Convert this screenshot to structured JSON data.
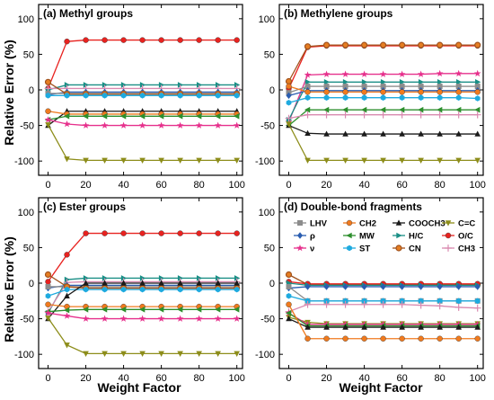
{
  "figure": {
    "ylabel": "Relative Error (%)",
    "xlabel": "Weight Factor"
  },
  "legend": {
    "labels": [
      "LHV",
      "CH2",
      "COOCH3",
      "C=C",
      "ρ",
      "MW",
      "H/C",
      "O/C",
      "ν",
      "ST",
      "CN",
      "CH3"
    ]
  },
  "chart_data": [
    {
      "type": "line",
      "title": "(a) Methyl groups",
      "x": [
        0,
        10,
        20,
        30,
        40,
        50,
        60,
        70,
        80,
        90,
        100
      ],
      "xlim": [
        -5,
        103
      ],
      "ylim": [
        -120,
        120
      ],
      "xticks": [
        0,
        20,
        40,
        60,
        80,
        100
      ],
      "yticks": [
        -100,
        -50,
        0,
        50,
        100
      ],
      "series": [
        {
          "name": "O/C",
          "color": "#e8221f",
          "marker": "circle",
          "values": [
            2,
            68,
            70,
            70,
            70,
            70,
            70,
            70,
            70,
            70,
            70
          ]
        },
        {
          "name": "H/C",
          "color": "#1a8f86",
          "marker": "tri-right",
          "values": [
            0,
            7,
            7,
            7,
            7,
            7,
            7,
            7,
            7,
            7,
            7
          ]
        },
        {
          "name": "CH3",
          "color": "#d98ab0",
          "marker": "plus",
          "values": [
            2,
            2,
            2,
            2,
            2,
            2,
            2,
            2,
            2,
            2,
            2
          ]
        },
        {
          "name": "ρ",
          "color": "#2a5db0",
          "marker": "diamond",
          "values": [
            -7,
            -3,
            -3,
            -3,
            -3,
            -3,
            -3,
            -3,
            -3,
            -3,
            -3
          ]
        },
        {
          "name": "LHV",
          "color": "#8c8c8c",
          "marker": "square",
          "values": [
            -5,
            -5,
            -5,
            -5,
            -5,
            -5,
            -5,
            -5,
            -5,
            -5,
            -5
          ]
        },
        {
          "name": "CN",
          "color": "#a0521d",
          "marker": "ocircle",
          "values": [
            11,
            -6,
            -6,
            -6,
            -6,
            -6,
            -6,
            -6,
            -6,
            -6,
            -6
          ]
        },
        {
          "name": "ST",
          "color": "#1eaadf",
          "marker": "hexagon",
          "values": [
            -8,
            -8,
            -8,
            -8,
            -8,
            -8,
            -8,
            -8,
            -8,
            -8,
            -8
          ]
        },
        {
          "name": "COOCH3",
          "color": "#1a1a1a",
          "marker": "triangle",
          "values": [
            -50,
            -30,
            -30,
            -30,
            -30,
            -30,
            -30,
            -30,
            -30,
            -30,
            -30
          ]
        },
        {
          "name": "CH2",
          "color": "#f07a1e",
          "marker": "circle",
          "values": [
            -30,
            -34,
            -34,
            -34,
            -34,
            -34,
            -34,
            -34,
            -34,
            -34,
            -34
          ]
        },
        {
          "name": "MW",
          "color": "#2d8f2d",
          "marker": "tri-left",
          "values": [
            -42,
            -37,
            -37,
            -37,
            -37,
            -37,
            -37,
            -37,
            -37,
            -37,
            -37
          ]
        },
        {
          "name": "ν",
          "color": "#e6308c",
          "marker": "star",
          "values": [
            -42,
            -48,
            -50,
            -50,
            -50,
            -50,
            -50,
            -50,
            -50,
            -50,
            -50
          ]
        },
        {
          "name": "C=C",
          "color": "#8d8d1a",
          "marker": "tri-down",
          "values": [
            -49,
            -97,
            -99,
            -99,
            -99,
            -99,
            -99,
            -99,
            -99,
            -99,
            -99
          ]
        }
      ]
    },
    {
      "type": "line",
      "title": "(b) Methylene groups",
      "x": [
        0,
        10,
        20,
        30,
        40,
        50,
        60,
        70,
        80,
        90,
        100
      ],
      "xlim": [
        -5,
        103
      ],
      "ylim": [
        -120,
        120
      ],
      "xticks": [
        0,
        20,
        40,
        60,
        80,
        100
      ],
      "yticks": [
        -100,
        -50,
        0,
        50,
        100
      ],
      "series": [
        {
          "name": "O/C",
          "color": "#e8221f",
          "marker": "circle",
          "values": [
            2,
            60,
            62,
            62,
            62,
            62,
            62,
            62,
            62,
            62,
            62
          ]
        },
        {
          "name": "CN",
          "color": "#a0521d",
          "marker": "ocircle",
          "values": [
            12,
            61,
            63,
            63,
            63,
            63,
            63,
            63,
            63,
            63,
            63
          ]
        },
        {
          "name": "ν",
          "color": "#e6308c",
          "marker": "star",
          "values": [
            -45,
            21,
            22,
            22,
            22,
            22,
            22,
            22,
            23,
            23,
            23
          ]
        },
        {
          "name": "H/C",
          "color": "#1a8f86",
          "marker": "tri-right",
          "values": [
            -42,
            11,
            11,
            11,
            11,
            11,
            11,
            11,
            11,
            11,
            11
          ]
        },
        {
          "name": "LHV",
          "color": "#8c8c8c",
          "marker": "square",
          "values": [
            -4,
            5,
            5,
            5,
            5,
            5,
            5,
            5,
            5,
            5,
            5
          ]
        },
        {
          "name": "ρ",
          "color": "#2a5db0",
          "marker": "diamond",
          "values": [
            -8,
            -1,
            -1,
            -1,
            -1,
            -1,
            -1,
            -1,
            -1,
            -1,
            -1
          ]
        },
        {
          "name": "CH2",
          "color": "#f07a1e",
          "marker": "circle",
          "values": [
            5,
            -3,
            -3,
            -3,
            -3,
            -3,
            -3,
            -3,
            -3,
            -3,
            -3
          ]
        },
        {
          "name": "ST",
          "color": "#1eaadf",
          "marker": "hexagon",
          "values": [
            -18,
            -11,
            -11,
            -11,
            -11,
            -11,
            -11,
            -11,
            -11,
            -11,
            -12
          ]
        },
        {
          "name": "MW",
          "color": "#2d8f2d",
          "marker": "tri-left",
          "values": [
            -50,
            -28,
            -28,
            -28,
            -28,
            -28,
            -28,
            -28,
            -28,
            -28,
            -28
          ]
        },
        {
          "name": "CH3",
          "color": "#d98ab0",
          "marker": "plus",
          "values": [
            -40,
            -35,
            -35,
            -35,
            -35,
            -35,
            -35,
            -35,
            -35,
            -35,
            -35
          ]
        },
        {
          "name": "COOCH3",
          "color": "#1a1a1a",
          "marker": "triangle",
          "values": [
            -50,
            -61,
            -62,
            -62,
            -62,
            -62,
            -62,
            -62,
            -62,
            -62,
            -62
          ]
        },
        {
          "name": "C=C",
          "color": "#8d8d1a",
          "marker": "tri-down",
          "values": [
            -48,
            -99,
            -99,
            -99,
            -99,
            -99,
            -99,
            -99,
            -99,
            -99,
            -99
          ]
        }
      ]
    },
    {
      "type": "line",
      "title": "(c) Ester groups",
      "x": [
        0,
        10,
        20,
        30,
        40,
        50,
        60,
        70,
        80,
        90,
        100
      ],
      "xlim": [
        -5,
        103
      ],
      "ylim": [
        -120,
        120
      ],
      "xticks": [
        0,
        20,
        40,
        60,
        80,
        100
      ],
      "yticks": [
        -100,
        -50,
        0,
        50,
        100
      ],
      "series": [
        {
          "name": "O/C",
          "color": "#e8221f",
          "marker": "circle",
          "values": [
            2,
            40,
            70,
            70,
            70,
            70,
            70,
            70,
            70,
            70,
            70
          ]
        },
        {
          "name": "H/C",
          "color": "#1a8f86",
          "marker": "tri-right",
          "values": [
            -42,
            5,
            7,
            7,
            7,
            7,
            7,
            7,
            7,
            7,
            7
          ]
        },
        {
          "name": "CH3",
          "color": "#d98ab0",
          "marker": "plus",
          "values": [
            -40,
            1,
            2,
            2,
            2,
            2,
            2,
            2,
            2,
            2,
            2
          ]
        },
        {
          "name": "ρ",
          "color": "#2a5db0",
          "marker": "diamond",
          "values": [
            -7,
            -3,
            -3,
            -3,
            -3,
            -3,
            -3,
            -3,
            -3,
            -3,
            -3
          ]
        },
        {
          "name": "LHV",
          "color": "#8c8c8c",
          "marker": "square",
          "values": [
            -5,
            -5,
            -5,
            -5,
            -5,
            -5,
            -5,
            -5,
            -5,
            -5,
            -5
          ]
        },
        {
          "name": "CN",
          "color": "#a0521d",
          "marker": "ocircle",
          "values": [
            12,
            -5,
            -7,
            -7,
            -7,
            -7,
            -7,
            -7,
            -7,
            -7,
            -7
          ]
        },
        {
          "name": "ST",
          "color": "#1eaadf",
          "marker": "hexagon",
          "values": [
            -18,
            -9,
            -9,
            -9,
            -9,
            -9,
            -9,
            -9,
            -9,
            -9,
            -9
          ]
        },
        {
          "name": "COOCH3",
          "color": "#1a1a1a",
          "marker": "triangle",
          "values": [
            -50,
            -18,
            0,
            0,
            0,
            0,
            0,
            0,
            0,
            0,
            0
          ]
        },
        {
          "name": "CH2",
          "color": "#f07a1e",
          "marker": "circle",
          "values": [
            -30,
            -33,
            -33,
            -33,
            -33,
            -33,
            -33,
            -33,
            -33,
            -33,
            -33
          ]
        },
        {
          "name": "MW",
          "color": "#2d8f2d",
          "marker": "tri-left",
          "values": [
            -40,
            -38,
            -37,
            -37,
            -37,
            -37,
            -37,
            -37,
            -37,
            -37,
            -37
          ]
        },
        {
          "name": "ν",
          "color": "#e6308c",
          "marker": "star",
          "values": [
            -42,
            -46,
            -50,
            -50,
            -50,
            -50,
            -50,
            -50,
            -50,
            -50,
            -50
          ]
        },
        {
          "name": "C=C",
          "color": "#8d8d1a",
          "marker": "tri-down",
          "values": [
            -49,
            -87,
            -99,
            -99,
            -99,
            -99,
            -99,
            -99,
            -99,
            -99,
            -99
          ]
        }
      ]
    },
    {
      "type": "line",
      "title": "(d) Double-bond fragments",
      "x": [
        0,
        10,
        20,
        30,
        40,
        50,
        60,
        70,
        80,
        90,
        100
      ],
      "xlim": [
        -5,
        103
      ],
      "ylim": [
        -120,
        120
      ],
      "xticks": [
        0,
        20,
        40,
        60,
        80,
        100
      ],
      "yticks": [
        -100,
        -50,
        0,
        50,
        100
      ],
      "series": [
        {
          "name": "CN",
          "color": "#a0521d",
          "marker": "ocircle",
          "values": [
            12,
            -2,
            -2,
            -2,
            -2,
            -2,
            -2,
            -2,
            -2,
            -2,
            -2
          ]
        },
        {
          "name": "O/C",
          "color": "#e8221f",
          "marker": "circle",
          "values": [
            2,
            -1,
            -1,
            -1,
            -1,
            -1,
            -1,
            -1,
            -1,
            -1,
            -1
          ]
        },
        {
          "name": "H/C",
          "color": "#1a8f86",
          "marker": "tri-right",
          "values": [
            0,
            -3,
            -3,
            -3,
            -3,
            -3,
            -3,
            -3,
            -3,
            -3,
            -3
          ]
        },
        {
          "name": "ρ",
          "color": "#2a5db0",
          "marker": "diamond",
          "values": [
            -7,
            -5,
            -5,
            -5,
            -5,
            -5,
            -5,
            -5,
            -5,
            -5,
            -5
          ]
        },
        {
          "name": "LHV",
          "color": "#8c8c8c",
          "marker": "square",
          "values": [
            -5,
            -25,
            -25,
            -25,
            -25,
            -25,
            -25,
            -25,
            -25,
            -25,
            -25
          ]
        },
        {
          "name": "ST",
          "color": "#1eaadf",
          "marker": "hexagon",
          "values": [
            -18,
            -25,
            -25,
            -25,
            -25,
            -25,
            -25,
            -25,
            -25,
            -25,
            -25
          ]
        },
        {
          "name": "CH3",
          "color": "#d98ab0",
          "marker": "plus",
          "values": [
            -40,
            -30,
            -30,
            -30,
            -30,
            -30,
            -30,
            -31,
            -32,
            -34,
            -35
          ]
        },
        {
          "name": "C=C",
          "color": "#8d8d1a",
          "marker": "tri-down",
          "values": [
            -48,
            -55,
            -57,
            -57,
            -57,
            -57,
            -57,
            -57,
            -57,
            -57,
            -57
          ]
        },
        {
          "name": "ν",
          "color": "#e6308c",
          "marker": "star",
          "values": [
            -42,
            -58,
            -58,
            -58,
            -58,
            -58,
            -58,
            -58,
            -58,
            -58,
            -58
          ]
        },
        {
          "name": "MW",
          "color": "#2d8f2d",
          "marker": "tri-left",
          "values": [
            -42,
            -60,
            -60,
            -60,
            -60,
            -60,
            -60,
            -60,
            -60,
            -60,
            -60
          ]
        },
        {
          "name": "COOCH3",
          "color": "#1a1a1a",
          "marker": "triangle",
          "values": [
            -50,
            -62,
            -62,
            -62,
            -62,
            -62,
            -62,
            -62,
            -62,
            -62,
            -62
          ]
        },
        {
          "name": "CH2",
          "color": "#f07a1e",
          "marker": "circle",
          "values": [
            -30,
            -78,
            -78,
            -78,
            -78,
            -78,
            -78,
            -78,
            -78,
            -78,
            -78
          ]
        }
      ]
    }
  ]
}
